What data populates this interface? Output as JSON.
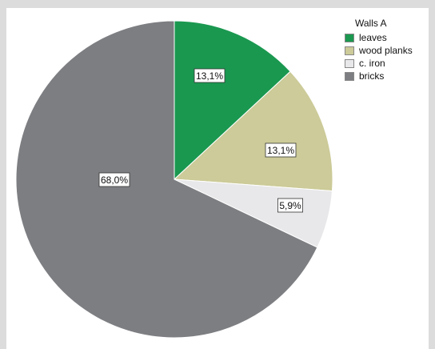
{
  "chart_data": {
    "type": "pie",
    "legend_title": "Walls A",
    "legend_position": "top-right",
    "slices": [
      {
        "name": "leaves",
        "value": 13.1,
        "label": "13,1%",
        "color": "#1a9850"
      },
      {
        "name": "wood planks",
        "value": 13.1,
        "label": "13,1%",
        "color": "#cccb99"
      },
      {
        "name": "c. iron",
        "value": 5.9,
        "label": "5,9%",
        "color": "#e8e8ea"
      },
      {
        "name": "bricks",
        "value": 68.0,
        "label": "68,0%",
        "color": "#7d7e82"
      }
    ],
    "start_angle": "top",
    "direction": "clockwise"
  }
}
